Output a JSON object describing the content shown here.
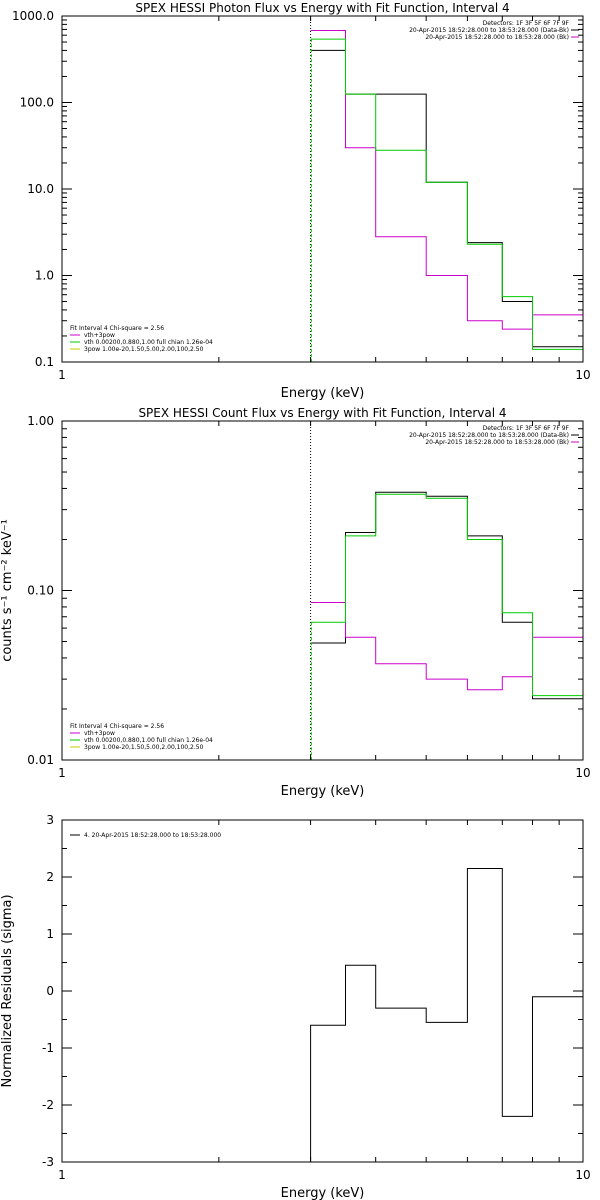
{
  "chart_data": [
    {
      "type": "line",
      "title": "SPEX HESSI Photon Flux vs Energy with Fit Function, Interval 4",
      "xlabel": "Energy (keV)",
      "ylabel": "",
      "x_scale": "log",
      "y_scale": "log",
      "xlim": [
        1,
        10
      ],
      "ylim": [
        0.1,
        1000
      ],
      "x_ticks": [
        {
          "v": 1,
          "label": "1"
        },
        {
          "v": 10,
          "label": "10"
        }
      ],
      "y_ticks": [
        {
          "v": 0.1,
          "label": "0.1"
        },
        {
          "v": 1,
          "label": "1.0"
        },
        {
          "v": 10,
          "label": "10.0"
        },
        {
          "v": 100,
          "label": "100.0"
        },
        {
          "v": 1000,
          "label": "1000.0"
        }
      ],
      "vline": 3,
      "info_lines": [
        "Detectors: 1F 3F 5F 6F 7F 9F",
        "20-Apr-2015 18:52:28.000 to 18:53:28.000 (Data-Bk)",
        "20-Apr-2015 18:52:28.000 to 18:53:28.000 (Bk)"
      ],
      "legend_lines": [
        "Fit Interval 4   Chi-square = 2.56",
        "vth+3pow",
        "vth 0.00200,0.880,1.00   full chian 1.26e-04",
        "3pow 1.00e-20,1.50,5.00,2.00,100,2.50"
      ],
      "legend_colors": [
        "#000000",
        "#cc00cc",
        "#00cc00",
        "#cccc00"
      ],
      "series": [
        {
          "color": "#000000",
          "edges": [
            3,
            3.5,
            4,
            5,
            6,
            7,
            8,
            9,
            10
          ],
          "values": [
            400,
            125,
            125,
            12,
            2.4,
            0.5,
            0.15,
            0.15
          ]
        },
        {
          "color": "#cc00cc",
          "edges": [
            3,
            3.5,
            4,
            5,
            6,
            7,
            8,
            9,
            10
          ],
          "values": [
            680,
            30,
            2.8,
            1.0,
            0.3,
            0.24,
            0.35,
            0.35
          ]
        },
        {
          "color": "#00cc00",
          "edges": [
            3,
            3.5,
            4,
            5,
            6,
            7,
            8,
            9,
            10
          ],
          "values": [
            540,
            125,
            28,
            12,
            2.3,
            0.57,
            0.14,
            0.14
          ]
        }
      ]
    },
    {
      "type": "line",
      "title": "SPEX HESSI Count Flux vs Energy with Fit Function, Interval 4",
      "xlabel": "Energy (keV)",
      "ylabel": "counts s⁻¹ cm⁻² keV⁻¹",
      "x_scale": "log",
      "y_scale": "log",
      "xlim": [
        1,
        10
      ],
      "ylim": [
        0.01,
        1
      ],
      "x_ticks": [
        {
          "v": 1,
          "label": "1"
        },
        {
          "v": 10,
          "label": "10"
        }
      ],
      "y_ticks": [
        {
          "v": 0.01,
          "label": "0.01"
        },
        {
          "v": 0.1,
          "label": "0.10"
        },
        {
          "v": 1,
          "label": "1.00"
        }
      ],
      "vline": 3,
      "info_lines": [
        "Detectors: 1F 3F 5F 6F 7F 9F",
        "20-Apr-2015 18:52:28.000 to 18:53:28.000 (Data-Bk)",
        "20-Apr-2015 18:52:28.000 to 18:53:28.000 (Bk)"
      ],
      "legend_lines": [
        "Fit Interval 4   Chi-square = 2.56",
        "vth+3pow",
        "vth 0.00200,0.880,1.00   full chian 1.26e-04",
        "3pow 1.00e-20,1.50,5.00,2.00,100,2.50"
      ],
      "legend_colors": [
        "#000000",
        "#cc00cc",
        "#00cc00",
        "#cccc00"
      ],
      "series": [
        {
          "color": "#000000",
          "edges": [
            3,
            3.5,
            4,
            5,
            6,
            7,
            8,
            9,
            10
          ],
          "values": [
            0.049,
            0.22,
            0.38,
            0.36,
            0.21,
            0.065,
            0.023,
            0.023
          ]
        },
        {
          "color": "#cc00cc",
          "edges": [
            3,
            3.5,
            4,
            5,
            6,
            7,
            8,
            9,
            10
          ],
          "values": [
            0.085,
            0.053,
            0.037,
            0.03,
            0.026,
            0.031,
            0.053,
            0.053
          ]
        },
        {
          "color": "#00cc00",
          "edges": [
            3,
            3.5,
            4,
            5,
            6,
            7,
            8,
            9,
            10
          ],
          "values": [
            0.065,
            0.21,
            0.37,
            0.35,
            0.2,
            0.074,
            0.024,
            0.024
          ]
        }
      ]
    },
    {
      "type": "line",
      "title": "",
      "xlabel": "Energy (keV)",
      "ylabel": "Normalized Residuals (sigma)",
      "x_scale": "log",
      "y_scale": "linear",
      "xlim": [
        1,
        10
      ],
      "ylim": [
        -3,
        3
      ],
      "x_ticks": [
        {
          "v": 1,
          "label": "1"
        },
        {
          "v": 10,
          "label": "10"
        }
      ],
      "y_ticks": [
        {
          "v": -3,
          "label": "-3"
        },
        {
          "v": -2,
          "label": "-2"
        },
        {
          "v": -1,
          "label": "-1"
        },
        {
          "v": 0,
          "label": "0"
        },
        {
          "v": 1,
          "label": "1"
        },
        {
          "v": 2,
          "label": "2"
        },
        {
          "v": 3,
          "label": "3"
        }
      ],
      "legend_lines": [
        "4. 20-Apr-2015 18:52:28.000 to 18:53:28.000"
      ],
      "legend_colors": [
        "#000000"
      ],
      "series": [
        {
          "color": "#000000",
          "edges": [
            3,
            3.5,
            4,
            5,
            6,
            7,
            8,
            9,
            10
          ],
          "values": [
            -0.6,
            0.45,
            -0.3,
            -0.55,
            2.15,
            -2.2,
            -0.1,
            -0.1
          ]
        }
      ]
    }
  ]
}
